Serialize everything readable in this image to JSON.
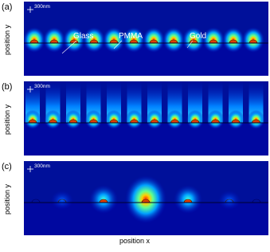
{
  "panels": [
    {
      "label": "(a)",
      "scale": "300nm",
      "y_axis": "position y",
      "annotations": [
        "Glass",
        "PMMA",
        "Gold"
      ]
    },
    {
      "label": "(b)",
      "scale": "300nm",
      "y_axis": "position y"
    },
    {
      "label": "(c)",
      "scale": "300nm",
      "y_axis": "position y"
    }
  ],
  "x_axis": "position x"
}
